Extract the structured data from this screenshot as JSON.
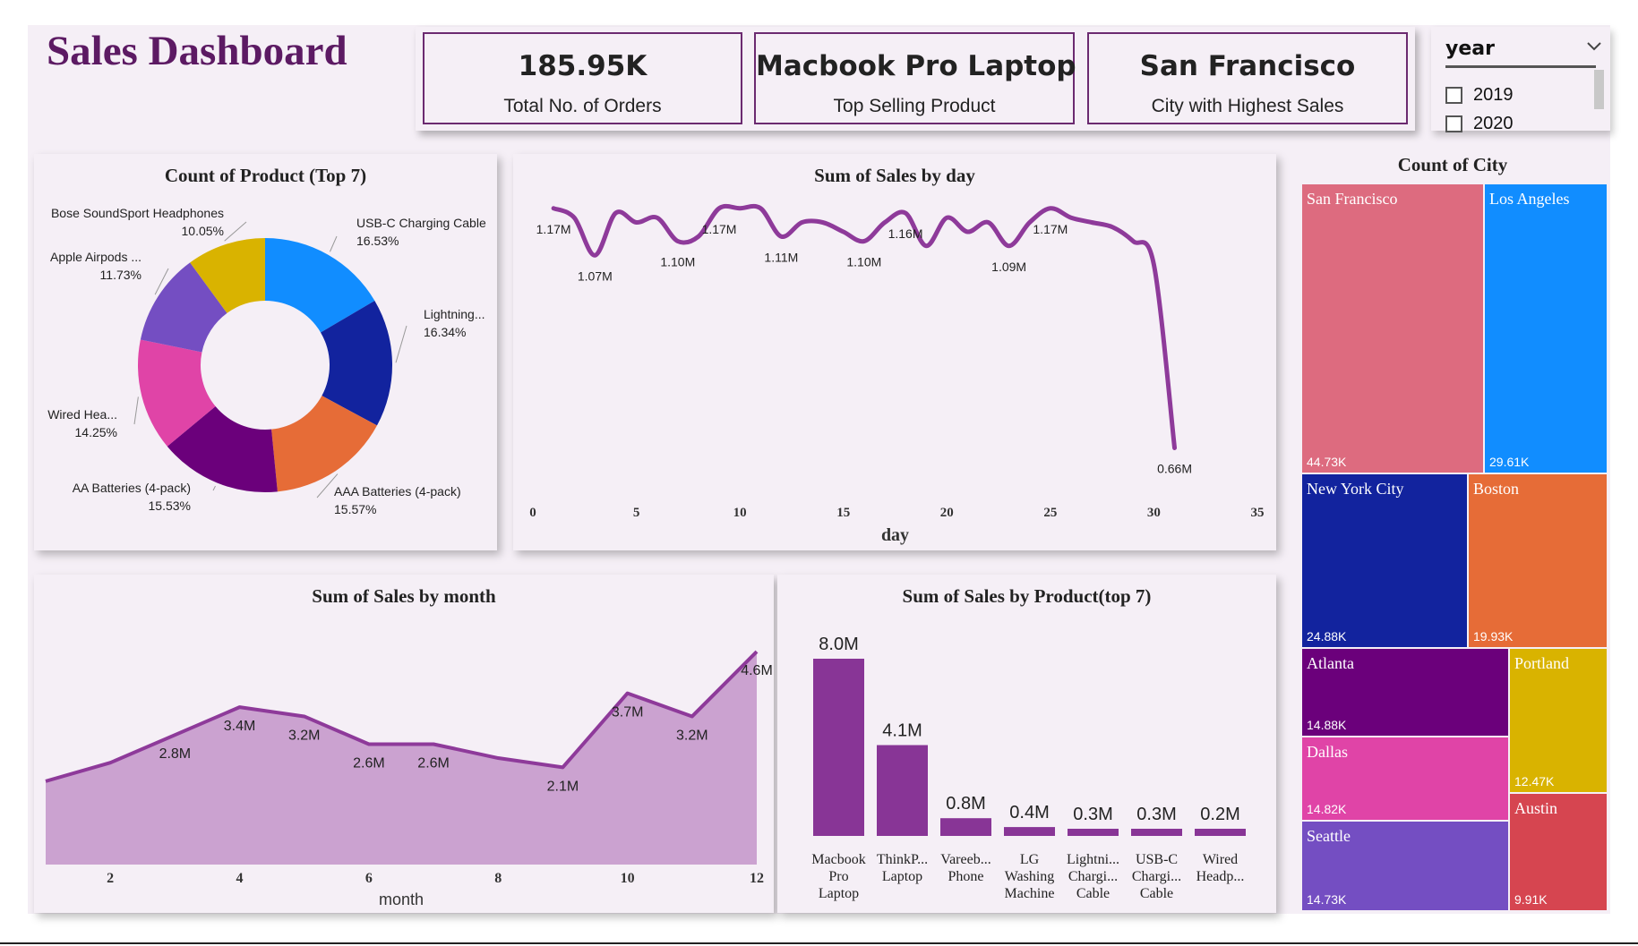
{
  "header": {
    "title": "Sales Dashboard",
    "kpis": [
      {
        "value": "185.95K",
        "label": "Total No. of Orders"
      },
      {
        "value": "Macbook Pro Laptop",
        "label": "Top Selling Product"
      },
      {
        "value": "San Francisco",
        "label": "City with Highest Sales"
      }
    ]
  },
  "slicer": {
    "title": "year",
    "options": [
      {
        "label": "2019",
        "checked": false
      },
      {
        "label": "2020",
        "checked": false
      }
    ]
  },
  "colors": {
    "accent": "#5c1a63",
    "line": "#8e3a9a",
    "area_fill": "#cba2d0",
    "bar": "#883596",
    "background": "#f5eff6"
  },
  "chart_data": [
    {
      "id": "donut",
      "type": "pie",
      "title": "Count of Product (Top 7)",
      "slices": [
        {
          "label": "USB-C Charging Cable",
          "value": 16.53,
          "pct": "16.53%",
          "color": "#118dff"
        },
        {
          "label": "Lightning...",
          "value": 16.34,
          "pct": "16.34%",
          "color": "#12239e"
        },
        {
          "label": "AAA Batteries (4-pack)",
          "value": 15.57,
          "pct": "15.57%",
          "color": "#e66c37"
        },
        {
          "label": "AA Batteries (4-pack)",
          "value": 15.53,
          "pct": "15.53%",
          "color": "#6b007b"
        },
        {
          "label": "Wired Hea...",
          "value": 14.25,
          "pct": "14.25%",
          "color": "#e044a7"
        },
        {
          "label": "Apple Airpods ...",
          "value": 11.73,
          "pct": "11.73%",
          "color": "#744ec2"
        },
        {
          "label": "Bose SoundSport Headphones",
          "value": 10.05,
          "pct": "10.05%",
          "color": "#d9b300"
        }
      ]
    },
    {
      "id": "daily",
      "type": "line",
      "title": "Sum of Sales by day",
      "xlabel": "day",
      "xlim": [
        0,
        35
      ],
      "xticks": [
        0,
        5,
        10,
        15,
        20,
        25,
        30,
        35
      ],
      "ylim": [
        0.6,
        1.2
      ],
      "x": [
        1,
        2,
        3,
        4,
        5,
        6,
        7,
        8,
        9,
        10,
        11,
        12,
        13,
        14,
        15,
        16,
        17,
        18,
        19,
        20,
        21,
        22,
        23,
        24,
        25,
        26,
        27,
        28,
        29,
        30,
        31
      ],
      "y": [
        1.17,
        1.15,
        1.07,
        1.16,
        1.14,
        1.15,
        1.1,
        1.11,
        1.17,
        1.17,
        1.17,
        1.11,
        1.14,
        1.14,
        1.12,
        1.1,
        1.14,
        1.16,
        1.09,
        1.15,
        1.12,
        1.14,
        1.09,
        1.14,
        1.17,
        1.15,
        1.14,
        1.13,
        1.1,
        1.05,
        0.66
      ],
      "labels": [
        {
          "x": 1,
          "text": "1.17M",
          "pos": "below"
        },
        {
          "x": 3,
          "text": "1.07M",
          "pos": "below"
        },
        {
          "x": 7,
          "text": "1.10M",
          "pos": "below"
        },
        {
          "x": 9,
          "text": "1.17M",
          "pos": "below"
        },
        {
          "x": 12,
          "text": "1.11M",
          "pos": "below"
        },
        {
          "x": 16,
          "text": "1.10M",
          "pos": "below"
        },
        {
          "x": 18,
          "text": "1.16M",
          "pos": "below"
        },
        {
          "x": 23,
          "text": "1.09M",
          "pos": "below"
        },
        {
          "x": 25,
          "text": "1.17M",
          "pos": "below"
        },
        {
          "x": 31,
          "text": "0.66M",
          "pos": "below"
        }
      ]
    },
    {
      "id": "monthly",
      "type": "area",
      "title": "Sum of Sales by month",
      "xlabel": "month",
      "xticks": [
        2,
        4,
        6,
        8,
        10,
        12
      ],
      "xlim": [
        1,
        12
      ],
      "ylim": [
        0,
        5.2
      ],
      "x": [
        1,
        2,
        3,
        4,
        5,
        6,
        7,
        8,
        9,
        10,
        11,
        12
      ],
      "y": [
        1.8,
        2.2,
        2.8,
        3.4,
        3.2,
        2.6,
        2.6,
        2.3,
        2.1,
        3.7,
        3.2,
        4.6
      ],
      "labels": [
        {
          "x": 3,
          "text": "2.8M"
        },
        {
          "x": 4,
          "text": "3.4M"
        },
        {
          "x": 5,
          "text": "3.2M"
        },
        {
          "x": 6,
          "text": "2.6M"
        },
        {
          "x": 7,
          "text": "2.6M"
        },
        {
          "x": 9,
          "text": "2.1M"
        },
        {
          "x": 10,
          "text": "3.7M"
        },
        {
          "x": 11,
          "text": "3.2M"
        },
        {
          "x": 12,
          "text": "4.6M"
        }
      ]
    },
    {
      "id": "products",
      "type": "bar",
      "title": "Sum of Sales by Product(top 7)",
      "ylim": [
        0,
        8.0
      ],
      "categories": [
        [
          "Macbook",
          "Pro",
          "Laptop"
        ],
        [
          "ThinkP...",
          "Laptop"
        ],
        [
          "Vareeb...",
          "Phone"
        ],
        [
          "LG",
          "Washing",
          "Machine"
        ],
        [
          "Lightni...",
          "Chargi...",
          "Cable"
        ],
        [
          "USB-C",
          "Chargi...",
          "Cable"
        ],
        [
          "Wired",
          "Headp..."
        ]
      ],
      "values": [
        8.0,
        4.1,
        0.8,
        0.4,
        0.3,
        0.3,
        0.2
      ],
      "value_labels": [
        "8.0M",
        "4.1M",
        "0.8M",
        "0.4M",
        "0.3M",
        "0.3M",
        "0.2M"
      ]
    },
    {
      "id": "cities",
      "type": "treemap",
      "title": "Count of City",
      "cells": [
        {
          "name": "San Francisco",
          "value": 44.73,
          "label": "44.73K",
          "color": "#dd6b7f"
        },
        {
          "name": "Los Angeles",
          "value": 29.61,
          "label": "29.61K",
          "color": "#118dff"
        },
        {
          "name": "New York City",
          "value": 24.88,
          "label": "24.88K",
          "color": "#12239e"
        },
        {
          "name": "Boston",
          "value": 19.93,
          "label": "19.93K",
          "color": "#e66c37"
        },
        {
          "name": "Atlanta",
          "value": 14.88,
          "label": "14.88K",
          "color": "#6b007b"
        },
        {
          "name": "Portland",
          "value": 12.47,
          "label": "12.47K",
          "color": "#d9b300"
        },
        {
          "name": "Dallas",
          "value": 14.82,
          "label": "14.82K",
          "color": "#e044a7"
        },
        {
          "name": "Austin",
          "value": 9.91,
          "label": "9.91K",
          "color": "#d64550"
        },
        {
          "name": "Seattle",
          "value": 14.73,
          "label": "14.73K",
          "color": "#744ec2"
        }
      ]
    }
  ]
}
